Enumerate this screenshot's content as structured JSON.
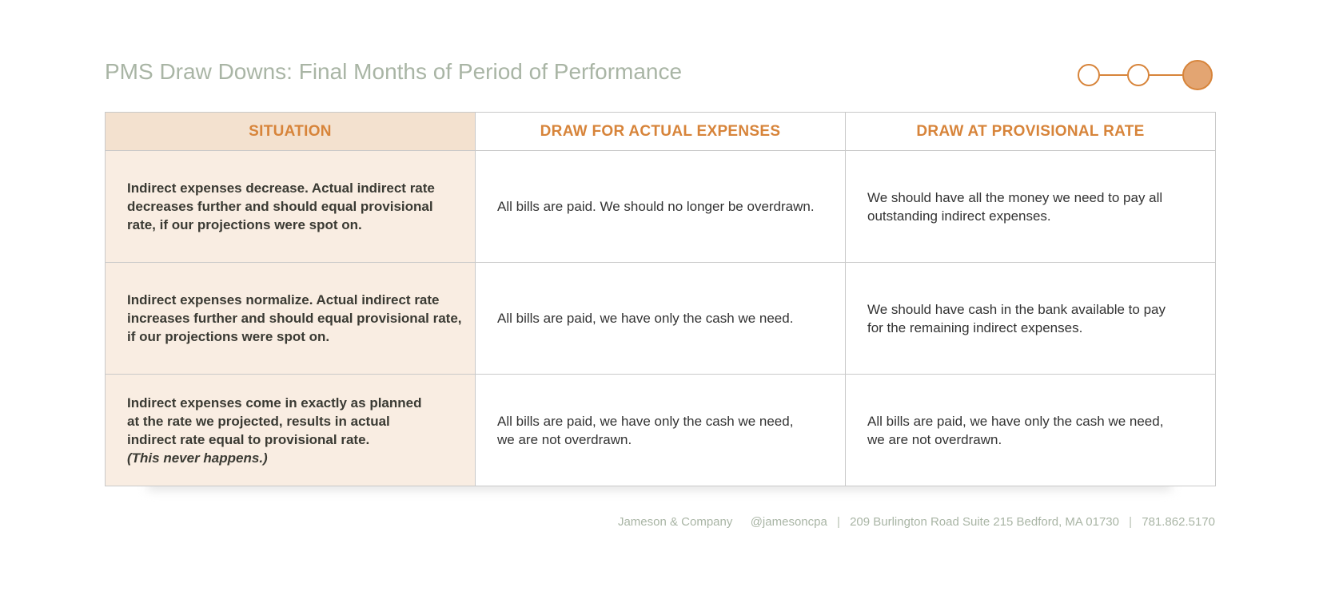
{
  "title": "PMS Draw Downs: Final Months of Period of Performance",
  "progress": {
    "steps": 3,
    "current": 3,
    "accent": "#d7843a",
    "filled_color": "#e3a572"
  },
  "table": {
    "headers": [
      "SITUATION",
      "DRAW FOR ACTUAL EXPENSES",
      "DRAW AT PROVISIONAL RATE"
    ],
    "rows": [
      {
        "situation": [
          "Indirect expenses decrease. Actual indirect rate",
          "decreases further and should equal provisional",
          "rate, if our projections were spot on."
        ],
        "actual": [
          "All bills are paid.  We should no longer be overdrawn."
        ],
        "provisional": [
          "We should have all the money we need to pay all",
          "outstanding indirect expenses."
        ]
      },
      {
        "situation": [
          "Indirect expenses normalize. Actual indirect rate",
          "increases further and should equal provisional rate,",
          "if our projections were spot on."
        ],
        "actual": [
          "All bills are paid, we have only the cash we need."
        ],
        "provisional": [
          "We should have cash in the bank available to pay",
          "for the remaining indirect expenses."
        ]
      },
      {
        "situation": [
          "Indirect expenses come in exactly as planned",
          "at the rate we projected, results in actual",
          "indirect rate equal to provisional rate."
        ],
        "situation_note": "(This never happens.)",
        "actual": [
          "All bills are paid, we have only the cash we need,",
          "we are not overdrawn."
        ],
        "provisional": [
          "All bills are paid, we have only the cash we need,",
          "we are not overdrawn."
        ]
      }
    ]
  },
  "footer": {
    "company": "Jameson & Company",
    "handle": "@jamesoncpa",
    "address": "209 Burlington Road Suite 215 Bedford, MA 01730",
    "phone": "781.862.5170",
    "separator": "|"
  }
}
